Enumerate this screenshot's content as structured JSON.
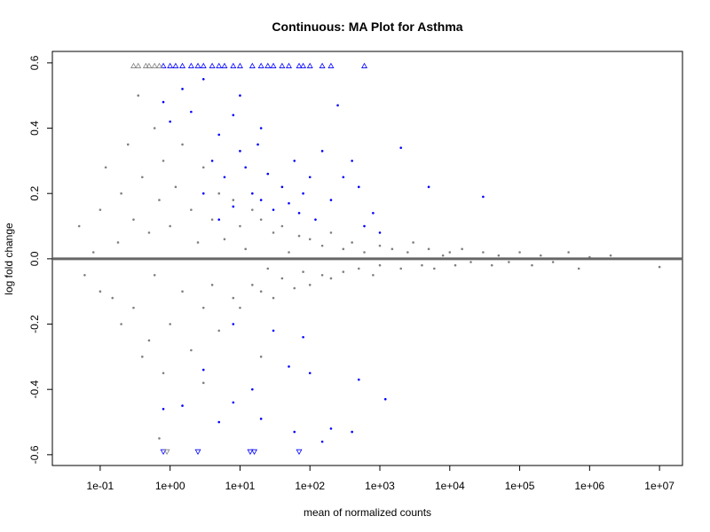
{
  "chart_data": {
    "type": "scatter",
    "title": "Continuous: MA Plot for Asthma",
    "xlabel": "mean of normalized counts",
    "ylabel": "log fold change",
    "xscale": "log",
    "xlim": [
      0.0207,
      21300000
    ],
    "ylim": [
      -0.633,
      0.635
    ],
    "xticks": [
      {
        "value": 0.1,
        "label": "1e-01"
      },
      {
        "value": 1,
        "label": "1e+00"
      },
      {
        "value": 10,
        "label": "1e+01"
      },
      {
        "value": 100,
        "label": "1e+02"
      },
      {
        "value": 1000,
        "label": "1e+03"
      },
      {
        "value": 10000,
        "label": "1e+04"
      },
      {
        "value": 100000,
        "label": "1e+05"
      },
      {
        "value": 1000000,
        "label": "1e+06"
      },
      {
        "value": 10000000,
        "label": "1e+07"
      }
    ],
    "yticks": [
      -0.6,
      -0.4,
      -0.2,
      {
        "value": 0,
        "label": "0.0"
      },
      0.2,
      0.4,
      0.6
    ],
    "hline": 0,
    "hline_color": "#666666",
    "series": [
      {
        "color": "#808080",
        "marker": "dot",
        "x": [
          0.05,
          0.06,
          0.08,
          0.1,
          0.1,
          0.12,
          0.15,
          0.18,
          0.2,
          0.2,
          0.25,
          0.3,
          0.3,
          0.35,
          0.4,
          0.4,
          0.5,
          0.5,
          0.6,
          0.6,
          0.7,
          0.8,
          0.8,
          1,
          1,
          1.2,
          1.5,
          1.5,
          2,
          2,
          2.5,
          3,
          3,
          4,
          4,
          5,
          5,
          6,
          8,
          8,
          10,
          10,
          12,
          15,
          15,
          20,
          20,
          25,
          30,
          30,
          40,
          40,
          50,
          60,
          70,
          80,
          100,
          100,
          150,
          150,
          200,
          200,
          300,
          300,
          400,
          500,
          600,
          800,
          1000,
          1000,
          1500,
          2000,
          2500,
          3000,
          4000,
          5000,
          6000,
          8000,
          10000,
          12000,
          15000,
          20000,
          30000,
          40000,
          50000,
          70000,
          100000,
          150000,
          200000,
          300000,
          500000,
          700000,
          1000000,
          2000000,
          10000000,
          0.7,
          3,
          20
        ],
        "values": [
          0.1,
          -0.05,
          0.02,
          0.15,
          -0.1,
          0.28,
          -0.12,
          0.05,
          0.2,
          -0.2,
          0.35,
          -0.15,
          0.12,
          0.5,
          -0.3,
          0.25,
          0.08,
          -0.25,
          0.4,
          -0.05,
          0.18,
          -0.35,
          0.3,
          0.1,
          -0.2,
          0.22,
          -0.1,
          0.35,
          0.15,
          -0.28,
          0.05,
          -0.15,
          0.28,
          0.12,
          -0.08,
          0.2,
          -0.22,
          0.06,
          -0.12,
          0.18,
          0.1,
          -0.15,
          0.03,
          -0.08,
          0.15,
          0.12,
          -0.1,
          -0.03,
          0.08,
          -0.12,
          0.1,
          -0.06,
          0.02,
          -0.09,
          0.07,
          -0.04,
          0.06,
          -0.08,
          0.04,
          -0.05,
          0.08,
          -0.06,
          0.03,
          -0.04,
          0.05,
          -0.03,
          0.02,
          -0.05,
          0.04,
          -0.02,
          0.03,
          -0.03,
          0.02,
          0.05,
          -0.02,
          0.03,
          -0.03,
          0.01,
          0.02,
          -0.02,
          0.03,
          -0.01,
          0.02,
          -0.02,
          0.01,
          -0.01,
          0.02,
          -0.02,
          0.01,
          -0.01,
          0.02,
          -0.03,
          0.005,
          0.01,
          -0.025,
          -0.55,
          -0.38,
          -0.3
        ]
      },
      {
        "color": "#0000ff",
        "marker": "dot",
        "x": [
          0.8,
          1.5,
          5,
          8,
          20,
          60,
          150,
          200,
          400,
          1200,
          3,
          15,
          50,
          100,
          500,
          8,
          30,
          80,
          0.8,
          1,
          1.5,
          2,
          3,
          4,
          5,
          6,
          8,
          10,
          12,
          15,
          18,
          20,
          25,
          30,
          40,
          50,
          60,
          70,
          80,
          100,
          120,
          150,
          200,
          250,
          300,
          400,
          500,
          600,
          800,
          1000,
          2000,
          5000,
          30000,
          10,
          3,
          5,
          20,
          8
        ],
        "values": [
          -0.46,
          -0.45,
          -0.5,
          -0.44,
          -0.49,
          -0.53,
          -0.56,
          -0.52,
          -0.53,
          -0.43,
          -0.34,
          -0.4,
          -0.33,
          -0.35,
          -0.37,
          -0.2,
          -0.22,
          -0.24,
          0.48,
          0.42,
          0.52,
          0.45,
          0.55,
          0.3,
          0.38,
          0.25,
          0.44,
          0.33,
          0.28,
          0.2,
          0.35,
          0.18,
          0.26,
          0.15,
          0.22,
          0.17,
          0.3,
          0.14,
          0.2,
          0.25,
          0.12,
          0.33,
          0.18,
          0.47,
          0.25,
          0.3,
          0.22,
          0.1,
          0.14,
          0.08,
          0.34,
          0.22,
          0.19,
          0.5,
          0.2,
          0.12,
          0.4,
          0.16
        ]
      },
      {
        "color": "#0000ff",
        "marker": "triangle-up",
        "x": [
          0.8,
          1,
          1.2,
          1.5,
          2,
          2.5,
          3,
          4,
          5,
          6,
          8,
          10,
          15,
          20,
          25,
          30,
          40,
          50,
          70,
          80,
          100,
          150,
          200,
          600
        ],
        "values": [
          0.59,
          0.59,
          0.59,
          0.59,
          0.59,
          0.59,
          0.59,
          0.59,
          0.59,
          0.59,
          0.59,
          0.59,
          0.59,
          0.59,
          0.59,
          0.59,
          0.59,
          0.59,
          0.59,
          0.59,
          0.59,
          0.59,
          0.59,
          0.59
        ]
      },
      {
        "color": "#808080",
        "marker": "triangle-up",
        "x": [
          0.3,
          0.35,
          0.45,
          0.5,
          0.6,
          0.7
        ],
        "values": [
          0.59,
          0.59,
          0.59,
          0.59,
          0.59,
          0.59
        ]
      },
      {
        "color": "#0000ff",
        "marker": "triangle-down",
        "x": [
          0.8,
          2.5,
          14,
          16,
          70
        ],
        "values": [
          -0.59,
          -0.59,
          -0.59,
          -0.59,
          -0.59
        ]
      },
      {
        "color": "#808080",
        "marker": "triangle-down",
        "x": [
          0.9
        ],
        "values": [
          -0.59
        ]
      }
    ]
  }
}
